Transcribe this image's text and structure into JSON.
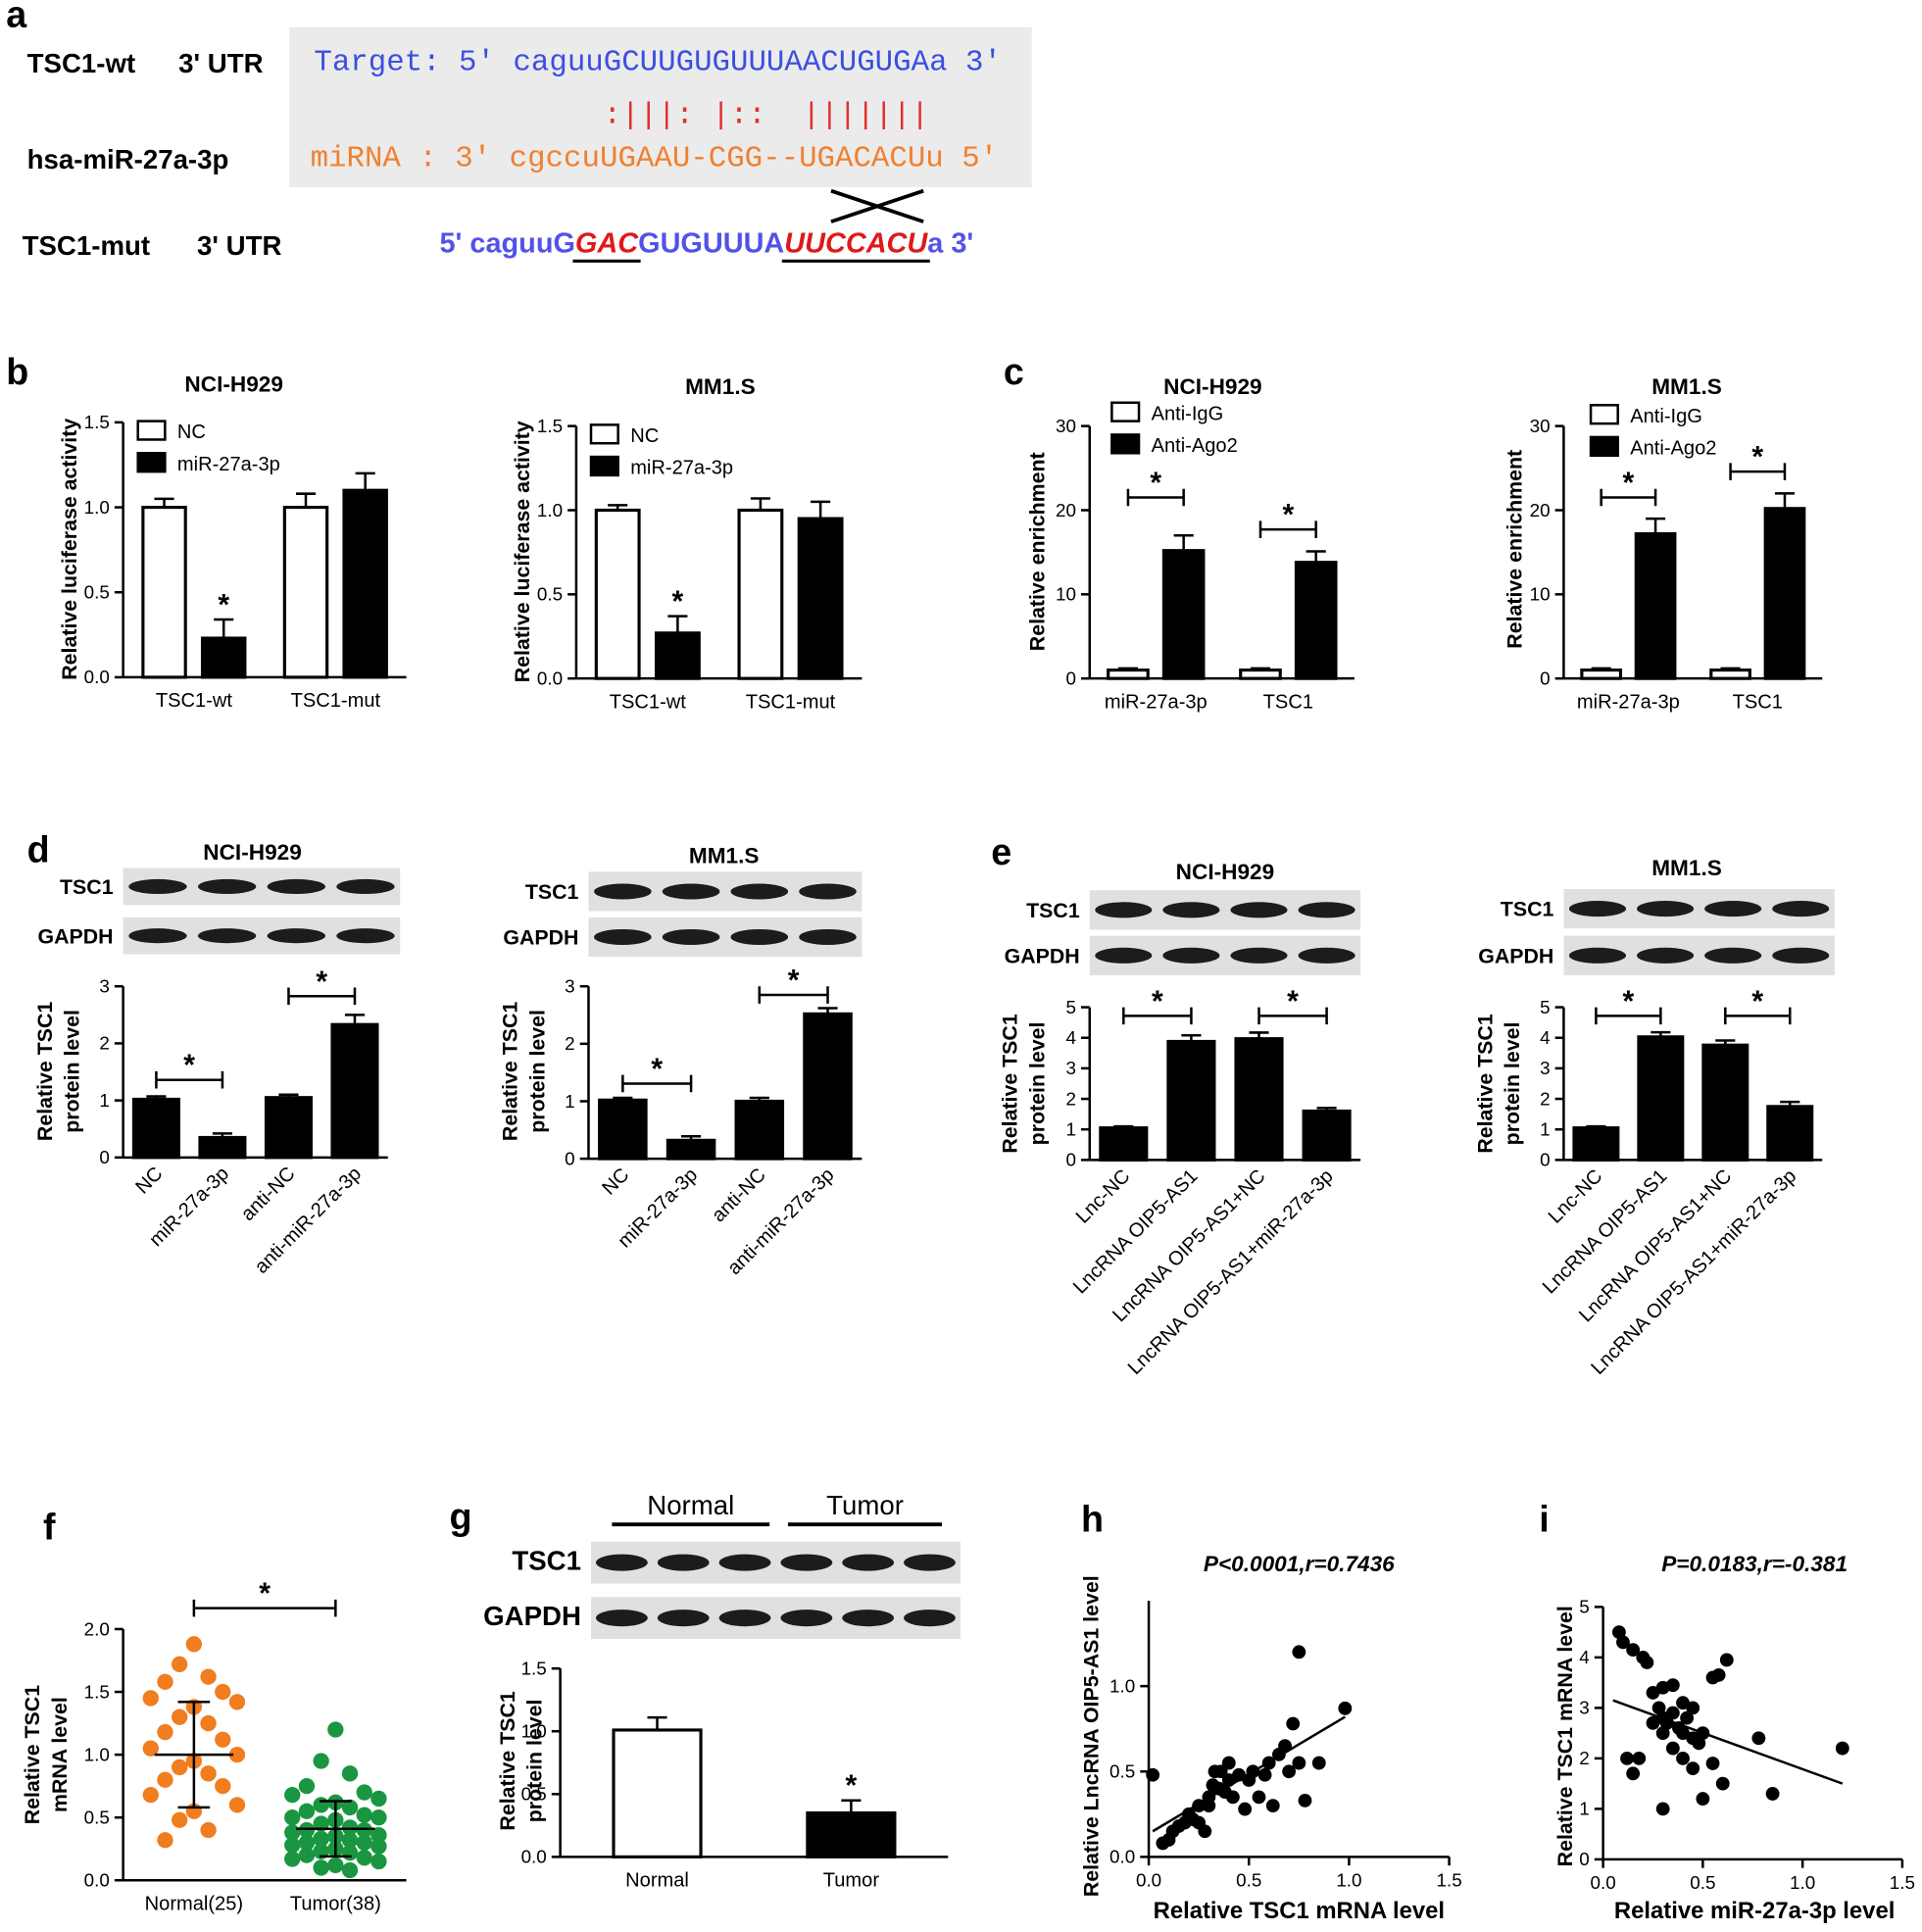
{
  "panel_labels": [
    "a",
    "b",
    "c",
    "d",
    "e",
    "f",
    "g",
    "h",
    "i"
  ],
  "sequence": {
    "rows": [
      {
        "name": "TSC1-wt",
        "region": "3' UTR"
      },
      {
        "name": "hsa-miR-27a-3p"
      },
      {
        "name": "TSC1-mut",
        "region": "3' UTR"
      }
    ],
    "target": "Target: 5' caguuGCUUGUGUUUAACUGUGAa 3'",
    "pairing": ":|||: |::  |||||||",
    "mirna": "miRNA : 3' cgccuUGAAU-CGG--UGACACUu 5'",
    "mutant": [
      "5' caguuG",
      "GAC",
      "GUGUUUA",
      "UUCCACU",
      "a 3'"
    ]
  },
  "chart_data": [
    {
      "type": "bar",
      "title": "NCI-H929",
      "ylabel": "Relative luciferase activity",
      "categories": [
        "TSC1-wt",
        "TSC1-mut"
      ],
      "series": [
        {
          "name": "NC",
          "color": "#ffffff",
          "values": [
            1.0,
            1.0
          ],
          "errors": [
            0.05,
            0.08
          ]
        },
        {
          "name": "miR-27a-3p",
          "color": "#000000",
          "values": [
            0.23,
            1.1
          ],
          "errors": [
            0.11,
            0.1
          ]
        }
      ],
      "ylim": [
        0,
        1.5
      ],
      "yticks": [
        {
          "value": 0,
          "label": "0.0"
        },
        0.5,
        {
          "value": 1,
          "label": "1.0"
        },
        1.5
      ],
      "significance": [
        "*"
      ]
    },
    {
      "type": "bar",
      "title": "MM1.S",
      "ylabel": "Relative luciferase activity",
      "categories": [
        "TSC1-wt",
        "TSC1-mut"
      ],
      "series": [
        {
          "name": "NC",
          "color": "#ffffff",
          "values": [
            1.0,
            1.0
          ],
          "errors": [
            0.03,
            0.07
          ]
        },
        {
          "name": "miR-27a-3p",
          "color": "#000000",
          "values": [
            0.27,
            0.95
          ],
          "errors": [
            0.1,
            0.1
          ]
        }
      ],
      "ylim": [
        0,
        1.5
      ],
      "yticks": [
        {
          "value": 0,
          "label": "0.0"
        },
        0.5,
        {
          "value": 1,
          "label": "1.0"
        },
        1.5
      ],
      "significance": [
        "*"
      ]
    },
    {
      "type": "bar",
      "title": "NCI-H929",
      "ylabel": "Relative enrichment",
      "categories": [
        "miR-27a-3p",
        "TSC1"
      ],
      "series": [
        {
          "name": "Anti-IgG",
          "color": "#ffffff",
          "values": [
            1,
            1
          ],
          "errors": [
            0.2,
            0.2
          ]
        },
        {
          "name": "Anti-Ago2",
          "color": "#000000",
          "values": [
            15.2,
            13.8
          ],
          "errors": [
            1.8,
            1.3
          ]
        }
      ],
      "ylim": [
        0,
        30
      ],
      "yticks": [
        0,
        10,
        20,
        30
      ],
      "significance": [
        "*",
        "*"
      ]
    },
    {
      "type": "bar",
      "title": "MM1.S",
      "ylabel": "Relative enrichment",
      "categories": [
        "miR-27a-3p",
        "TSC1"
      ],
      "series": [
        {
          "name": "Anti-IgG",
          "color": "#ffffff",
          "values": [
            1,
            1
          ],
          "errors": [
            0.2,
            0.2
          ]
        },
        {
          "name": "Anti-Ago2",
          "color": "#000000",
          "values": [
            17.2,
            20.2
          ],
          "errors": [
            1.8,
            1.8
          ]
        }
      ],
      "ylim": [
        0,
        30
      ],
      "yticks": [
        0,
        10,
        20,
        30
      ],
      "significance": [
        "*",
        "*"
      ]
    },
    {
      "type": "bar",
      "title": "NCI-H929",
      "blot_rows": [
        "TSC1",
        "GAPDH"
      ],
      "ylabel": [
        "Relative TSC1",
        "protein level"
      ],
      "categories": [
        "NC",
        "miR-27a-3p",
        "anti-NC",
        "anti-miR-27a-3p"
      ],
      "series": [
        {
          "color": "#000000",
          "values": [
            1.02,
            0.35,
            1.05,
            2.33
          ],
          "errors": [
            0.05,
            0.07,
            0.05,
            0.17
          ]
        }
      ],
      "ylim": [
        0,
        3
      ],
      "yticks": [
        0,
        1,
        2,
        3
      ],
      "significance": [
        "*",
        "*"
      ]
    },
    {
      "type": "bar",
      "title": "MM1.S",
      "blot_rows": [
        "TSC1",
        "GAPDH"
      ],
      "ylabel": [
        "Relative TSC1",
        "protein level"
      ],
      "categories": [
        "NC",
        "miR-27a-3p",
        "anti-NC",
        "anti-miR-27a-3p"
      ],
      "series": [
        {
          "color": "#000000",
          "values": [
            1.02,
            0.32,
            1.0,
            2.52
          ],
          "errors": [
            0.04,
            0.07,
            0.06,
            0.1
          ]
        }
      ],
      "ylim": [
        0,
        3
      ],
      "yticks": [
        0,
        1,
        2,
        3
      ],
      "significance": [
        "*",
        "*"
      ]
    },
    {
      "type": "bar",
      "title": "NCI-H929",
      "blot_rows": [
        "TSC1",
        "GAPDH"
      ],
      "ylabel": [
        "Relative TSC1",
        "protein level"
      ],
      "categories": [
        "Lnc-NC",
        "LncRNA OIP5-AS1",
        "LncRNA OIP5-AS1+NC",
        "LncRNA OIP5-AS1+miR-27a-3p"
      ],
      "series": [
        {
          "color": "#000000",
          "values": [
            1.05,
            3.88,
            3.97,
            1.6
          ],
          "errors": [
            0.05,
            0.2,
            0.2,
            0.1
          ]
        }
      ],
      "ylim": [
        0,
        5
      ],
      "yticks": [
        0,
        1,
        2,
        3,
        4,
        5
      ],
      "significance": [
        "*",
        "*"
      ]
    },
    {
      "type": "bar",
      "title": "MM1.S",
      "blot_rows": [
        "TSC1",
        "GAPDH"
      ],
      "ylabel": [
        "Relative TSC1",
        "protein level"
      ],
      "categories": [
        "Lnc-NC",
        "LncRNA OIP5-AS1",
        "LncRNA OIP5-AS1+NC",
        "LncRNA OIP5-AS1+miR-27a-3p"
      ],
      "series": [
        {
          "color": "#000000",
          "values": [
            1.05,
            4.03,
            3.76,
            1.75
          ],
          "errors": [
            0.05,
            0.15,
            0.15,
            0.15
          ]
        }
      ],
      "ylim": [
        0,
        5
      ],
      "yticks": [
        0,
        1,
        2,
        3,
        4,
        5
      ],
      "significance": [
        "*",
        "*"
      ]
    },
    {
      "type": "dot-plot",
      "ylabel": [
        "Relative TSC1",
        "mRNA level"
      ],
      "categories": [
        "Normal(25)",
        "Tumor(38)"
      ],
      "groups": [
        {
          "color": "#f07d1e",
          "mean": 1.0,
          "sd": 0.42,
          "values": [
            1.88,
            1.72,
            1.62,
            1.58,
            1.5,
            1.45,
            1.42,
            1.38,
            1.3,
            1.25,
            1.18,
            1.12,
            1.05,
            1.0,
            0.95,
            0.9,
            0.85,
            0.8,
            0.75,
            0.68,
            0.6,
            0.55,
            0.48,
            0.4,
            0.32
          ]
        },
        {
          "color": "#1a9641",
          "mean": 0.41,
          "sd": 0.22,
          "values": [
            1.2,
            0.95,
            0.85,
            0.75,
            0.7,
            0.68,
            0.65,
            0.62,
            0.6,
            0.58,
            0.55,
            0.52,
            0.5,
            0.5,
            0.48,
            0.45,
            0.42,
            0.4,
            0.4,
            0.38,
            0.36,
            0.35,
            0.33,
            0.32,
            0.3,
            0.3,
            0.28,
            0.27,
            0.25,
            0.23,
            0.22,
            0.2,
            0.18,
            0.17,
            0.15,
            0.12,
            0.1,
            0.08
          ]
        }
      ],
      "ylim": [
        0,
        2
      ],
      "yticks": [
        {
          "value": 0,
          "label": "0.0"
        },
        0.5,
        {
          "value": 1,
          "label": "1.0"
        },
        1.5,
        {
          "value": 2,
          "label": "2.0"
        }
      ],
      "significance": [
        "*"
      ]
    },
    {
      "type": "bar",
      "blot_rows": [
        "TSC1",
        "GAPDH"
      ],
      "blot_groups": [
        "Normal",
        "Tumor"
      ],
      "ylabel": [
        "Relative TSC1",
        "protein level"
      ],
      "categories": [
        "Normal",
        "Tumor"
      ],
      "series": [
        {
          "colors": [
            "#ffffff",
            "#000000"
          ],
          "values": [
            1.01,
            0.35
          ],
          "errors": [
            0.1,
            0.1
          ]
        }
      ],
      "ylim": [
        0,
        1.5
      ],
      "yticks": [
        {
          "value": 0,
          "label": "0.0"
        },
        0.5,
        {
          "value": 1,
          "label": "1.0"
        },
        1.5
      ],
      "significance": [
        "*"
      ]
    },
    {
      "type": "scatter",
      "annotation": "P<0.0001,r=0.7436",
      "xlabel": "Relative TSC1 mRNA level",
      "ylabel": "Relative LncRNA OIP5-AS1 level",
      "series": [
        {
          "color": "#000000",
          "x": [
            0.02,
            0.07,
            0.1,
            0.12,
            0.15,
            0.18,
            0.2,
            0.22,
            0.25,
            0.28,
            0.3,
            0.32,
            0.33,
            0.35,
            0.38,
            0.4,
            0.42,
            0.45,
            0.48,
            0.5,
            0.52,
            0.55,
            0.58,
            0.6,
            0.62,
            0.65,
            0.68,
            0.7,
            0.72,
            0.75,
            0.75,
            0.78,
            0.85,
            0.98,
            0.3,
            0.36,
            0.25,
            0.4
          ],
          "y": [
            0.48,
            0.08,
            0.1,
            0.15,
            0.18,
            0.2,
            0.25,
            0.22,
            0.3,
            0.15,
            0.35,
            0.42,
            0.5,
            0.4,
            0.38,
            0.45,
            0.35,
            0.48,
            0.28,
            0.45,
            0.5,
            0.35,
            0.48,
            0.55,
            0.3,
            0.6,
            0.65,
            0.5,
            0.78,
            1.2,
            0.55,
            0.33,
            0.55,
            0.87,
            0.3,
            0.5,
            0.2,
            0.55
          ]
        }
      ],
      "fit": {
        "x": [
          0.02,
          0.98
        ],
        "y": [
          0.15,
          0.82
        ]
      },
      "xlim": [
        0,
        1.5
      ],
      "xticks": [
        {
          "value": 0,
          "label": "0.0"
        },
        0.5,
        {
          "value": 1,
          "label": "1.0"
        },
        1.5
      ],
      "ylim": [
        0,
        1.5
      ],
      "yticks": [
        {
          "value": 0,
          "label": "0.0"
        },
        0.5,
        {
          "value": 1,
          "label": "1.0"
        }
      ]
    },
    {
      "type": "scatter",
      "annotation": "P=0.0183,r=-0.381",
      "xlabel": "Relative miR-27a-3p level",
      "ylabel": "Relative TSC1 mRNA level",
      "series": [
        {
          "color": "#000000",
          "x": [
            0.08,
            0.1,
            0.15,
            0.2,
            0.22,
            0.3,
            0.35,
            0.4,
            0.45,
            0.55,
            0.58,
            0.62,
            0.25,
            0.28,
            0.3,
            0.32,
            0.35,
            0.38,
            0.4,
            0.42,
            0.45,
            0.48,
            0.3,
            0.25,
            0.12,
            0.15,
            0.18,
            0.35,
            0.4,
            0.45,
            0.5,
            0.55,
            0.6,
            0.78,
            1.2,
            0.85,
            0.3,
            0.5
          ],
          "y": [
            4.5,
            4.3,
            4.15,
            4.0,
            3.9,
            3.4,
            3.45,
            3.1,
            3.0,
            3.6,
            3.65,
            3.95,
            3.3,
            3.0,
            2.8,
            2.7,
            2.9,
            2.6,
            2.5,
            2.8,
            2.4,
            2.3,
            2.5,
            2.7,
            2.0,
            1.7,
            2.0,
            2.2,
            2.0,
            1.8,
            2.5,
            1.9,
            1.5,
            2.4,
            2.2,
            1.3,
            1.0,
            1.2
          ]
        }
      ],
      "fit": {
        "x": [
          0.05,
          1.2
        ],
        "y": [
          3.15,
          1.5
        ]
      },
      "xlim": [
        0,
        1.5
      ],
      "xticks": [
        {
          "value": 0,
          "label": "0.0"
        },
        0.5,
        {
          "value": 1,
          "label": "1.0"
        },
        1.5
      ],
      "ylim": [
        0,
        5
      ],
      "yticks": [
        0,
        1,
        2,
        3,
        4,
        5
      ]
    }
  ]
}
